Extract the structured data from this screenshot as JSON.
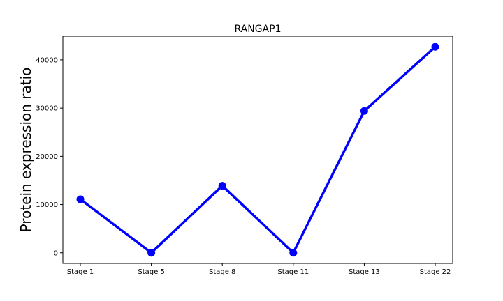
{
  "chart_data": {
    "type": "line",
    "title": "RANGAP1",
    "xlabel": "",
    "ylabel": "Protein expression ratio",
    "categories": [
      "Stage 1",
      "Stage 5",
      "Stage 8",
      "Stage 11",
      "Stage 13",
      "Stage 22"
    ],
    "series": [
      {
        "values": [
          11100,
          0,
          13900,
          0,
          29400,
          42700
        ],
        "color": "#0000ff",
        "marker": "circle"
      }
    ],
    "ylim": [
      -2200,
      44900
    ],
    "yticks": [
      0,
      10000,
      20000,
      30000,
      40000
    ],
    "grid": false,
    "legend": false
  }
}
